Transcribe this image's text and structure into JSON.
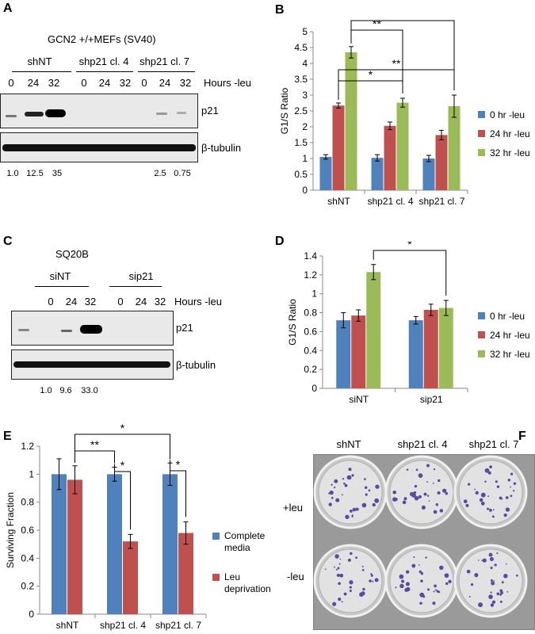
{
  "panels": {
    "A": {
      "label": "A",
      "title": "GCN2 +/+MEFs (SV40)",
      "groups": [
        "shNT",
        "shp21 cl. 4",
        "shp21 cl. 7"
      ],
      "lanes": [
        "0",
        "24",
        "32",
        "0",
        "24",
        "32",
        "0",
        "24",
        "32"
      ],
      "hours_label": "Hours -leu",
      "blot1_label": "p21",
      "blot2_label": "β-tubulin",
      "quant": [
        "1.0",
        "12.5",
        "35",
        "2.5",
        "0.75"
      ]
    },
    "C": {
      "label": "C",
      "title": "SQ20B",
      "groups": [
        "siNT",
        "sip21"
      ],
      "lanes": [
        "0",
        "24",
        "32",
        "0",
        "24",
        "32"
      ],
      "hours_label": "Hours -leu",
      "blot1_label": "p21",
      "blot2_label": "β-tubulin",
      "quant": [
        "1.0",
        "9.6",
        "33.0"
      ]
    },
    "F": {
      "label": "F",
      "columns": [
        "shNT",
        "shp21 cl. 4",
        "shp21 cl. 7"
      ],
      "rows": [
        "+leu",
        "-leu"
      ]
    }
  },
  "chart_data": [
    {
      "id": "B",
      "panel_label": "B",
      "type": "bar",
      "categories": [
        "shNT",
        "shp21 cl. 4",
        "shp21 cl. 7"
      ],
      "series": [
        {
          "name": "0 hr -leu",
          "color": "#4f81bd",
          "values": [
            1.05,
            1.02,
            1.0
          ],
          "errors": [
            0.07,
            0.1,
            0.1
          ]
        },
        {
          "name": "24 hr -leu",
          "color": "#c0504d",
          "values": [
            2.67,
            2.03,
            1.74
          ],
          "errors": [
            0.08,
            0.12,
            0.15
          ]
        },
        {
          "name": "32 hr -leu",
          "color": "#9bbb59",
          "values": [
            4.35,
            2.76,
            2.65
          ],
          "errors": [
            0.18,
            0.14,
            0.35
          ]
        }
      ],
      "ylabel": "G1/S Ratio",
      "ylim": [
        0,
        5
      ],
      "yticks": [
        "0",
        "0.5",
        "1",
        "1.5",
        "2",
        "2.5",
        "3",
        "3.5",
        "4",
        "4.5",
        "5"
      ],
      "grid": false,
      "legend": "right",
      "sig_labels": [
        "*",
        "**",
        "*",
        "**"
      ]
    },
    {
      "id": "D",
      "panel_label": "D",
      "type": "bar",
      "categories": [
        "siNT",
        "sip21"
      ],
      "series": [
        {
          "name": "0 hr -leu",
          "color": "#4f81bd",
          "values": [
            0.72,
            0.72
          ],
          "errors": [
            0.08,
            0.04
          ]
        },
        {
          "name": "24 hr -leu",
          "color": "#c0504d",
          "values": [
            0.77,
            0.83
          ],
          "errors": [
            0.06,
            0.06
          ]
        },
        {
          "name": "32 hr -leu",
          "color": "#9bbb59",
          "values": [
            1.23,
            0.85
          ],
          "errors": [
            0.08,
            0.08
          ]
        }
      ],
      "ylabel": "G1/S Ratio",
      "ylim": [
        0,
        1.4
      ],
      "yticks": [
        "0",
        "0.2",
        "0.4",
        "0.6",
        "0.8",
        "1",
        "1.2",
        "1.4"
      ],
      "grid": false,
      "legend": "right",
      "sig_labels": [
        "*"
      ]
    },
    {
      "id": "E",
      "panel_label": "E",
      "type": "bar",
      "categories": [
        "shNT",
        "shp21 cl. 4",
        "shp21 cl. 7"
      ],
      "series": [
        {
          "name": "Complete media",
          "color": "#4f81bd",
          "values": [
            1.0,
            1.0,
            1.0
          ],
          "errors": [
            0.11,
            0.05,
            0.08
          ]
        },
        {
          "name": "Leu deprivation",
          "color": "#c0504d",
          "values": [
            0.96,
            0.52,
            0.58
          ],
          "errors": [
            0.1,
            0.05,
            0.08
          ]
        }
      ],
      "ylabel": "Surviving Fraction",
      "ylim": [
        0,
        1.2
      ],
      "yticks": [
        "0",
        "0.2",
        "0.4",
        "0.6",
        "0.8",
        "1",
        "1.2"
      ],
      "grid": false,
      "legend": "right",
      "legend_lines": [
        [
          "Complete",
          "media"
        ],
        [
          "Leu",
          "deprivation"
        ]
      ],
      "sig_labels": [
        "*",
        "**",
        "*",
        "*"
      ]
    }
  ]
}
